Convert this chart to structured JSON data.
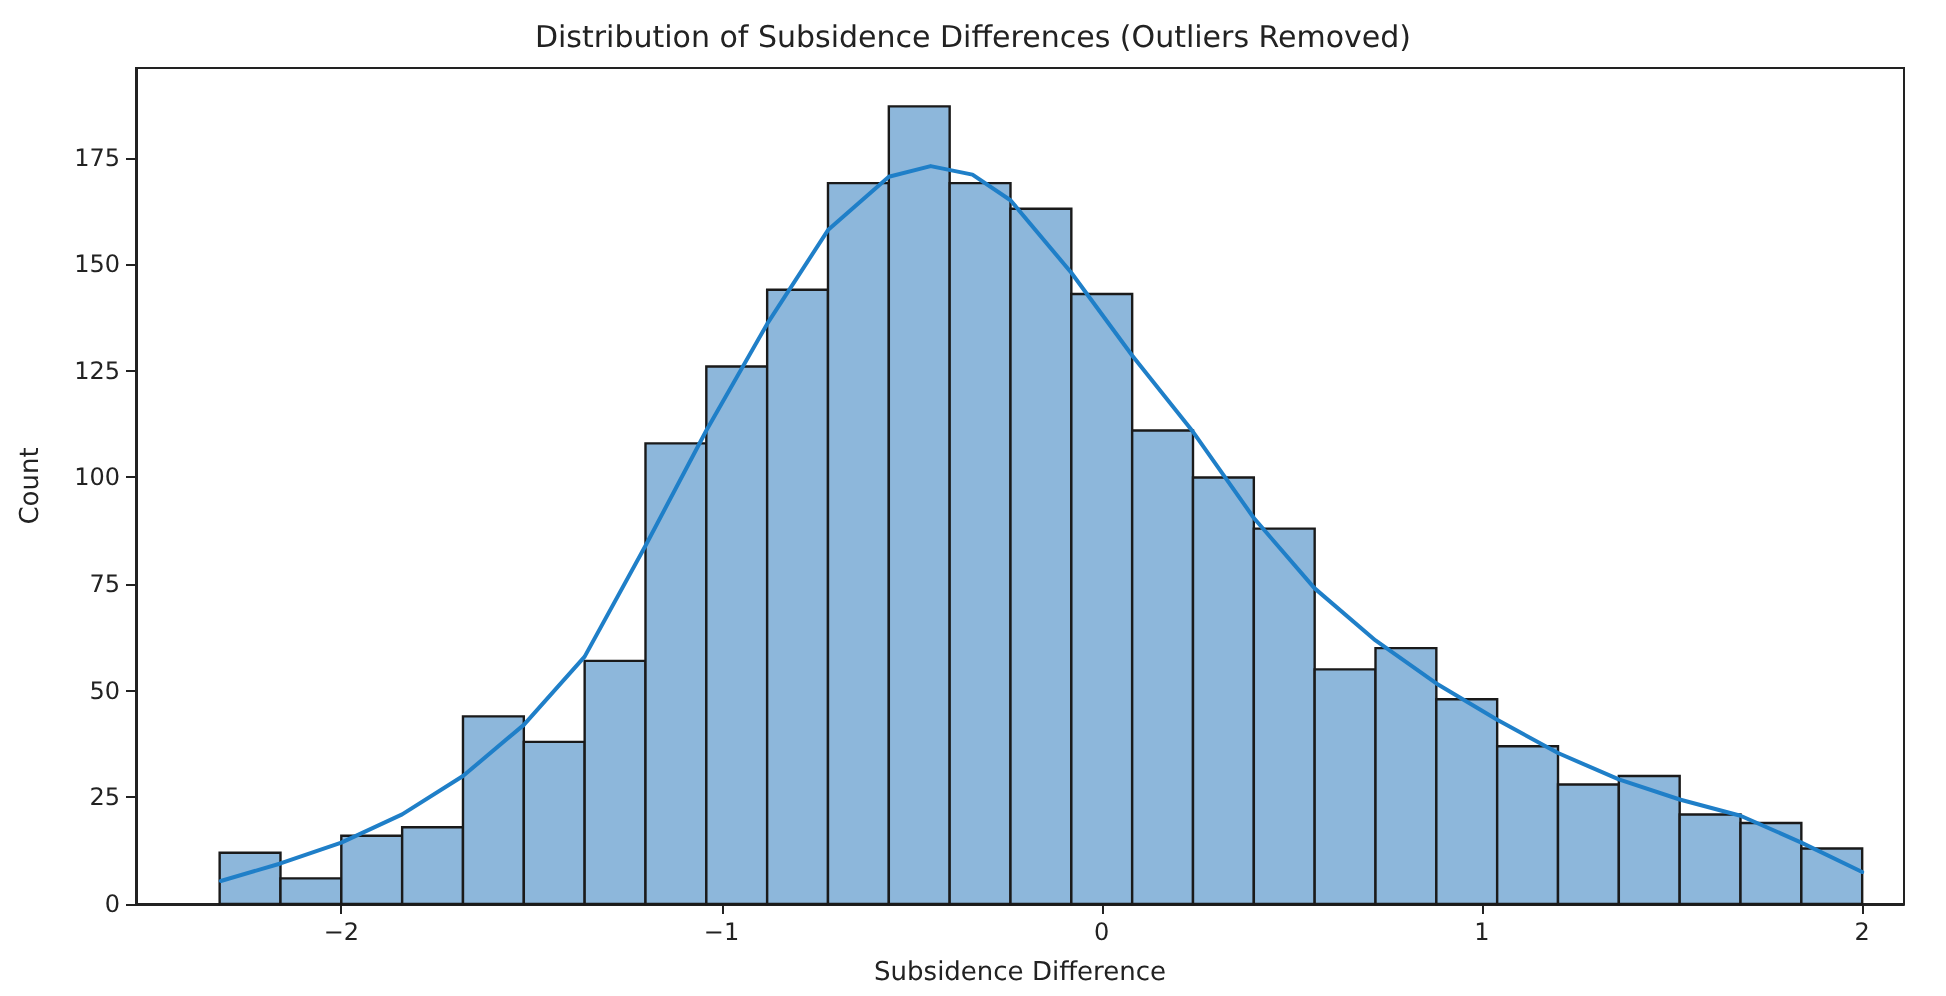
{
  "chart_data": {
    "type": "histogram",
    "title": "Distribution of Subsidence Differences (Outliers Removed)",
    "xlabel": "Subsidence Difference",
    "ylabel": "Count",
    "bins": [
      -2.32,
      -2.16,
      -2.0,
      -1.84,
      -1.68,
      -1.52,
      -1.36,
      -1.2,
      -1.04,
      -0.88,
      -0.72,
      -0.56,
      -0.4,
      -0.24,
      -0.08,
      0.08,
      0.24,
      0.4,
      0.56,
      0.72,
      0.88,
      1.04,
      1.2,
      1.36,
      1.52,
      1.68,
      1.84,
      2.0
    ],
    "series": [
      {
        "color": "#8db7db",
        "values": [
          12,
          6,
          16,
          18,
          44,
          38,
          57,
          108,
          126,
          144,
          169,
          187,
          169,
          163,
          143,
          111,
          100,
          88,
          55,
          60,
          48,
          37,
          28,
          30,
          21,
          19,
          13
        ]
      },
      {
        "type": "line",
        "color": "#1f7fc8",
        "x": [
          -2.317,
          -2.16,
          -2.0,
          -1.84,
          -1.68,
          -1.52,
          -1.36,
          -1.2,
          -1.04,
          -0.88,
          -0.72,
          -0.56,
          -0.45,
          -0.34,
          -0.24,
          -0.08,
          0.08,
          0.24,
          0.4,
          0.56,
          0.72,
          0.88,
          1.04,
          1.2,
          1.36,
          1.52,
          1.68,
          1.84,
          2.0
        ],
        "values": [
          5.4,
          9.5,
          14.4,
          21,
          30,
          42,
          58,
          84,
          111,
          136,
          158,
          170.5,
          173,
          171,
          165,
          148,
          128.6,
          110.7,
          90.5,
          74,
          61.8,
          51.7,
          43.2,
          35.4,
          29.2,
          24.5,
          20.7,
          14.4,
          7.5
        ]
      }
    ],
    "xlim": [
      -2.54,
      2.11
    ],
    "xticks": [
      -2,
      -1,
      0,
      1,
      2
    ],
    "ylim": [
      0,
      196
    ],
    "yticks": [
      0,
      25,
      50,
      75,
      100,
      125,
      150,
      175
    ],
    "grid": false,
    "marker": "none",
    "line_style": "solid"
  }
}
